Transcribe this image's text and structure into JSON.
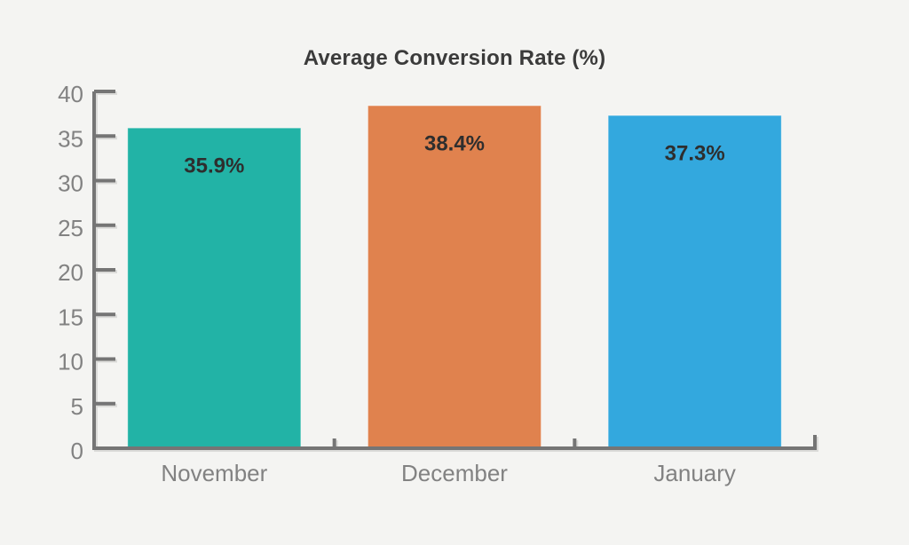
{
  "page": {
    "background": "#f4f4f2"
  },
  "chart_data": {
    "type": "bar",
    "title": "Average Conversion Rate (%)",
    "categories": [
      "November",
      "December",
      "January"
    ],
    "values": [
      35.9,
      38.4,
      37.3
    ],
    "value_labels": [
      "35.9%",
      "38.4%",
      "37.3%"
    ],
    "series_colors": [
      "#22b3a6",
      "#e0824e",
      "#33a8de"
    ],
    "xlabel": "",
    "ylabel": "",
    "ylim": [
      0,
      40
    ],
    "yticks": [
      0,
      5,
      10,
      15,
      20,
      25,
      30,
      35,
      40
    ],
    "grid": false,
    "legend": false
  },
  "style": {
    "axis_color": "#757575",
    "tick_label_color": "#828282",
    "category_label_color": "#828282",
    "title_color": "#3b3b3b",
    "value_label_color": "#2e2e2e"
  }
}
